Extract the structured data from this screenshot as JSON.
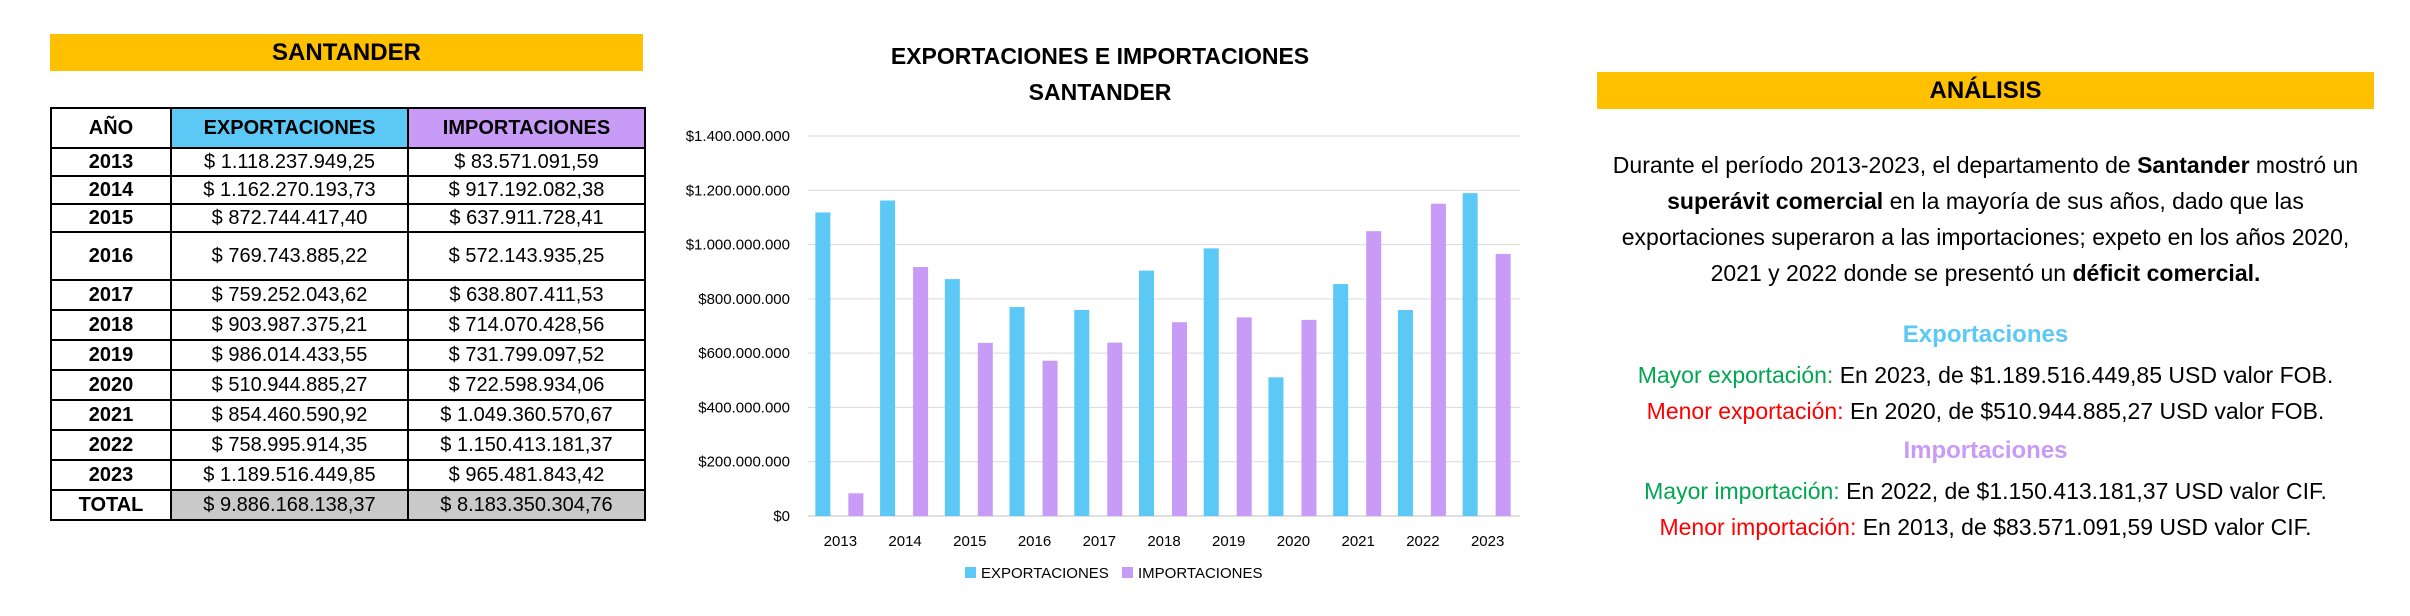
{
  "left": {
    "title": "SANTANDER",
    "headers": [
      "AÑO",
      "EXPORTACIONES",
      "IMPORTACIONES"
    ],
    "rows": [
      {
        "year": "2013",
        "exp": "$ 1.118.237.949,25",
        "imp": "$ 83.571.091,59"
      },
      {
        "year": "2014",
        "exp": "$ 1.162.270.193,73",
        "imp": "$ 917.192.082,38"
      },
      {
        "year": "2015",
        "exp": "$ 872.744.417,40",
        "imp": "$ 637.911.728,41"
      },
      {
        "year": "2016",
        "exp": "$ 769.743.885,22",
        "imp": "$ 572.143.935,25"
      },
      {
        "year": "2017",
        "exp": "$ 759.252.043,62",
        "imp": "$ 638.807.411,53"
      },
      {
        "year": "2018",
        "exp": "$ 903.987.375,21",
        "imp": "$ 714.070.428,56"
      },
      {
        "year": "2019",
        "exp": "$ 986.014.433,55",
        "imp": "$ 731.799.097,52"
      },
      {
        "year": "2020",
        "exp": "$ 510.944.885,27",
        "imp": "$ 722.598.934,06"
      },
      {
        "year": "2021",
        "exp": "$ 854.460.590,92",
        "imp": "$ 1.049.360.570,67"
      },
      {
        "year": "2022",
        "exp": "$ 758.995.914,35",
        "imp": "$ 1.150.413.181,37"
      },
      {
        "year": "2023",
        "exp": "$ 1.189.516.449,85",
        "imp": "$ 965.481.843,42"
      }
    ],
    "total": {
      "label": "TOTAL",
      "exp": "$ 9.886.168.138,37",
      "imp": "$ 8.183.350.304,76"
    }
  },
  "colors": {
    "title_bar": "#FFC000",
    "exports": "#5BC8F5",
    "imports": "#C89BF7",
    "total_fill": "#C9C9C9"
  },
  "chart_data": {
    "type": "bar",
    "title": "EXPORTACIONES E IMPORTACIONES",
    "subtitle": "SANTANDER",
    "categories": [
      "2013",
      "2014",
      "2015",
      "2016",
      "2017",
      "2018",
      "2019",
      "2020",
      "2021",
      "2022",
      "2023"
    ],
    "series": [
      {
        "name": "EXPORTACIONES",
        "color": "#5BC8F5",
        "values": [
          1118237949.25,
          1162270193.73,
          872744417.4,
          769743885.22,
          759252043.62,
          903987375.21,
          986014433.55,
          510944885.27,
          854460590.92,
          758995914.35,
          1189516449.85
        ]
      },
      {
        "name": "IMPORTACIONES",
        "color": "#C89BF7",
        "values": [
          83571091.59,
          917192082.38,
          637911728.41,
          572143935.25,
          638807411.53,
          714070428.56,
          731799097.52,
          722598934.06,
          1049360570.67,
          1150413181.37,
          965481843.42
        ]
      }
    ],
    "ylim": [
      0,
      1400000000
    ],
    "yticks": [
      0,
      200000000,
      400000000,
      600000000,
      800000000,
      1000000000,
      1200000000,
      1400000000
    ],
    "ytick_labels": [
      "$0",
      "$200.000.000",
      "$400.000.000",
      "$600.000.000",
      "$800.000.000",
      "$1.000.000.000",
      "$1.200.000.000",
      "$1.400.000.000"
    ],
    "grid": true,
    "legend": "bottom"
  },
  "analysis": {
    "title": "ANÁLISIS",
    "p1": "Durante el período 2013-2023, el departamento de ",
    "b1": "Santander",
    "p2": " mostró un ",
    "b2": "superávit comercial",
    "p3": " en la mayoría de sus años, dado que las exportaciones superaron a las importaciones; expeto en los años 2020, 2021 y 2022 donde se presentó un ",
    "b3": "déficit comercial.",
    "exp_head": "Exportaciones",
    "exp_max_label": "Mayor exportación:",
    "exp_max_text": " En 2023, de $1.189.516.449,85 USD valor FOB.",
    "exp_min_label": "Menor exportación:",
    "exp_min_text": " En 2020, de $510.944.885,27 USD valor FOB.",
    "imp_head": "Importaciones",
    "imp_max_label": "Mayor importación:",
    "imp_max_text": " En 2022, de $1.150.413.181,37 USD valor CIF.",
    "imp_min_label": "Menor importación:",
    "imp_min_text": " En 2013, de $83.571.091,59 USD valor CIF."
  }
}
